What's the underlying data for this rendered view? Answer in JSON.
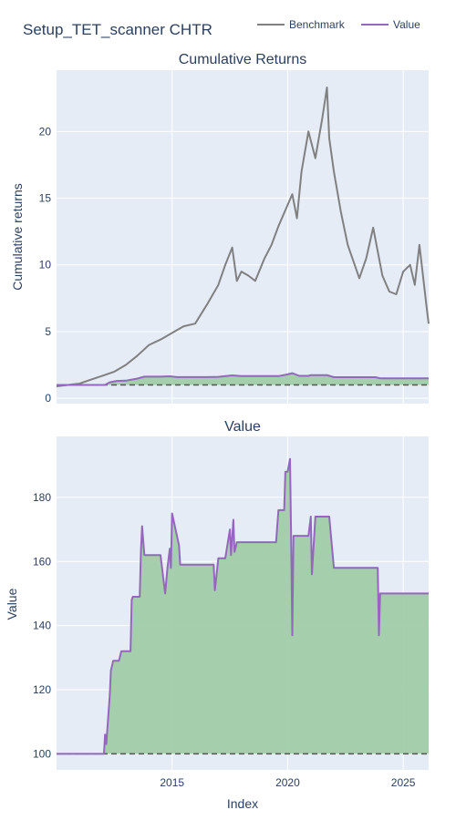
{
  "header": {
    "title": "Setup_TET_scanner CHTR"
  },
  "legend": {
    "items": [
      "Benchmark",
      "Value"
    ],
    "placement": "top-right"
  },
  "colors": {
    "benchmark": "#808080",
    "value": "#9467bd",
    "fill": "#a1cca8",
    "plot_bg": "#e5ecf6",
    "grid": "#ffffff",
    "baseline": "#555555",
    "text": "#2a3f5f"
  },
  "chart_data": [
    {
      "type": "line",
      "title": "Cumulative Returns",
      "xlabel": "",
      "ylabel": "Cumulative returns",
      "xlim": [
        2010.0,
        2026.1
      ],
      "ylim": [
        -0.4,
        24.6
      ],
      "yticks": [
        0,
        5,
        10,
        15,
        20
      ],
      "xticks": [
        2015,
        2020,
        2025
      ],
      "series": [
        {
          "name": "Benchmark",
          "x": [
            2010.0,
            2010.5,
            2011.0,
            2011.5,
            2012.0,
            2012.5,
            2013.0,
            2013.5,
            2014.0,
            2014.5,
            2015.0,
            2015.5,
            2016.0,
            2016.5,
            2017.0,
            2017.3,
            2017.6,
            2017.8,
            2018.0,
            2018.3,
            2018.6,
            2019.0,
            2019.3,
            2019.6,
            2020.0,
            2020.2,
            2020.4,
            2020.6,
            2020.9,
            2021.2,
            2021.5,
            2021.7,
            2021.8,
            2022.0,
            2022.3,
            2022.6,
            2022.9,
            2023.1,
            2023.4,
            2023.7,
            2023.9,
            2024.1,
            2024.4,
            2024.7,
            2025.0,
            2025.3,
            2025.5,
            2025.7,
            2026.0,
            2026.1
          ],
          "y": [
            0.9,
            1.0,
            1.1,
            1.4,
            1.7,
            2.0,
            2.5,
            3.2,
            4.0,
            4.4,
            4.9,
            5.4,
            5.6,
            7.0,
            8.5,
            10.0,
            11.3,
            8.8,
            9.5,
            9.2,
            8.8,
            10.5,
            11.5,
            12.9,
            14.5,
            15.3,
            13.5,
            17.0,
            20.0,
            18.0,
            21.0,
            23.3,
            19.5,
            17.0,
            14.0,
            11.5,
            10.0,
            9.0,
            10.5,
            12.8,
            11.0,
            9.2,
            8.0,
            7.8,
            9.5,
            10.0,
            8.5,
            11.5,
            7.0,
            5.6
          ]
        },
        {
          "name": "Value",
          "x": [
            2010.0,
            2012.1,
            2012.3,
            2012.6,
            2013.0,
            2013.5,
            2013.8,
            2014.5,
            2014.9,
            2015.2,
            2015.6,
            2016.5,
            2017.0,
            2017.6,
            2018.0,
            2019.0,
            2019.6,
            2019.9,
            2020.2,
            2020.5,
            2020.9,
            2021.0,
            2021.7,
            2022.0,
            2023.0,
            2023.8,
            2024.0,
            2025.0,
            2026.1
          ],
          "y": [
            1.0,
            1.0,
            1.2,
            1.3,
            1.32,
            1.48,
            1.62,
            1.62,
            1.65,
            1.59,
            1.59,
            1.59,
            1.61,
            1.72,
            1.66,
            1.66,
            1.66,
            1.76,
            1.88,
            1.68,
            1.68,
            1.74,
            1.74,
            1.58,
            1.58,
            1.58,
            1.5,
            1.5,
            1.5
          ]
        }
      ],
      "baseline": 1.0,
      "fill_between": [
        "Value",
        "baseline"
      ]
    },
    {
      "type": "line",
      "title": "Value",
      "xlabel": "Index",
      "ylabel": "Value",
      "xlim": [
        2010.0,
        2026.1
      ],
      "ylim": [
        95,
        199
      ],
      "yticks": [
        100,
        120,
        140,
        160,
        180
      ],
      "xticks": [
        2015,
        2020,
        2025
      ],
      "series": [
        {
          "name": "Value",
          "x": [
            2010.0,
            2012.05,
            2012.1,
            2012.15,
            2012.3,
            2012.35,
            2012.45,
            2012.7,
            2012.8,
            2013.0,
            2013.2,
            2013.25,
            2013.3,
            2013.6,
            2013.65,
            2013.7,
            2013.8,
            2014.5,
            2014.7,
            2014.8,
            2014.9,
            2014.95,
            2015.0,
            2015.3,
            2015.35,
            2015.5,
            2016.5,
            2016.8,
            2016.85,
            2017.0,
            2017.2,
            2017.3,
            2017.5,
            2017.55,
            2017.65,
            2017.7,
            2017.8,
            2018.0,
            2019.0,
            2019.5,
            2019.6,
            2019.85,
            2019.9,
            2020.0,
            2020.1,
            2020.15,
            2020.2,
            2020.25,
            2020.3,
            2020.9,
            2021.0,
            2021.05,
            2021.2,
            2021.8,
            2022.0,
            2023.0,
            2023.9,
            2023.95,
            2024.0,
            2025.0,
            2026.1
          ],
          "y": [
            100,
            100,
            106,
            103,
            118,
            126,
            129,
            129,
            132,
            132,
            132,
            148,
            149,
            149,
            163,
            171,
            162,
            162,
            150,
            158,
            164,
            158,
            175,
            165,
            159,
            159,
            159,
            159,
            151,
            161,
            161,
            161,
            170,
            162,
            173,
            163,
            166,
            166,
            166,
            166,
            176,
            176,
            188,
            188,
            192,
            168,
            137,
            168,
            168,
            168,
            174,
            156,
            174,
            174,
            158,
            158,
            158,
            137,
            150,
            150,
            150
          ]
        }
      ],
      "baseline": 100,
      "fill_between": [
        "Value",
        "baseline"
      ]
    }
  ]
}
